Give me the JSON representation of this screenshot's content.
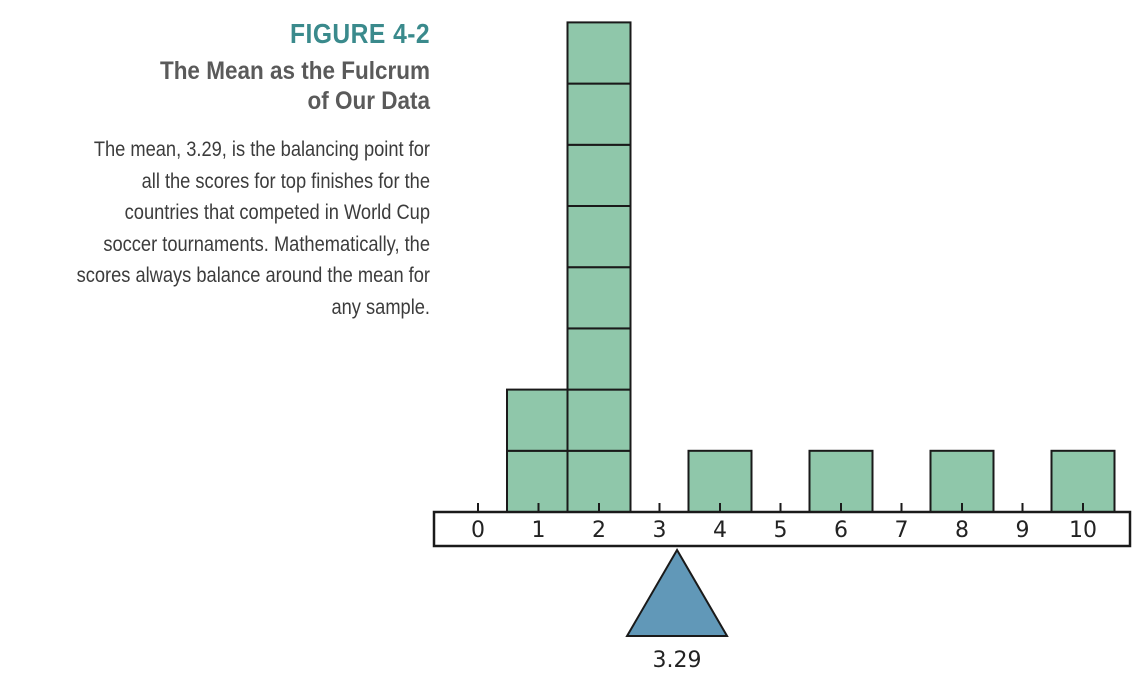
{
  "caption": {
    "figure_label": "FIGURE 4-2",
    "title": "The Mean as the Fulcrum\nof Our Data",
    "description": "The mean, 3.29, is the balancing point for\nall the scores for top finishes for the\ncountries that competed in World Cup\nsoccer tournaments. Mathematically, the\nscores always balance around the mean for\nany sample."
  },
  "chart_data": {
    "type": "bar",
    "x": [
      0,
      1,
      2,
      3,
      4,
      5,
      6,
      7,
      8,
      9,
      10
    ],
    "counts": [
      0,
      2,
      8,
      0,
      1,
      0,
      1,
      0,
      1,
      0,
      1
    ],
    "tick_labels": [
      "0",
      "1",
      "2",
      "3",
      "4",
      "5",
      "6",
      "7",
      "8",
      "9",
      "10"
    ],
    "mean": 3.29,
    "mean_label": "3.29",
    "xlim": [
      0,
      10
    ],
    "ylim": [
      0,
      8
    ],
    "title": "",
    "xlabel": "",
    "ylabel": "",
    "grid": false
  },
  "colors": {
    "block_fill": "#8fc7aa",
    "block_stroke": "#1a1a1a",
    "fulcrum_fill": "#6198b8",
    "figure_label": "#3a8a8c",
    "title": "#5a5a5a",
    "text": "#3c3c3c"
  }
}
